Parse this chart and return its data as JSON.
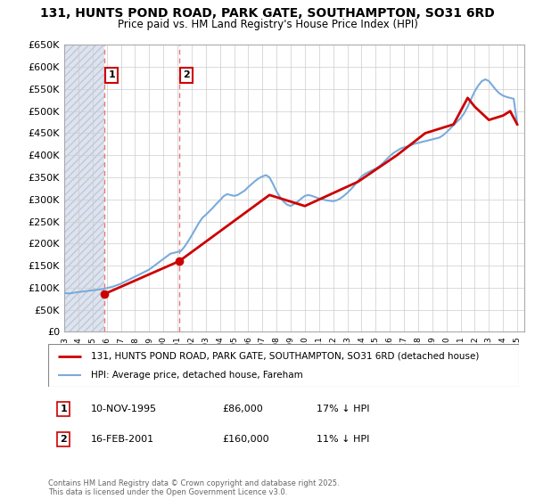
{
  "title": "131, HUNTS POND ROAD, PARK GATE, SOUTHAMPTON, SO31 6RD",
  "subtitle": "Price paid vs. HM Land Registry's House Price Index (HPI)",
  "ylim": [
    0,
    650000
  ],
  "yticks": [
    0,
    50000,
    100000,
    150000,
    200000,
    250000,
    300000,
    350000,
    400000,
    450000,
    500000,
    550000,
    600000,
    650000
  ],
  "ytick_labels": [
    "£0",
    "£50K",
    "£100K",
    "£150K",
    "£200K",
    "£250K",
    "£300K",
    "£350K",
    "£400K",
    "£450K",
    "£500K",
    "£550K",
    "£600K",
    "£650K"
  ],
  "sales": [
    {
      "date_num": 1995.86,
      "price": 86000,
      "label": "1",
      "date_str": "10-NOV-1995",
      "price_str": "£86,000",
      "pct": "17% ↓ HPI"
    },
    {
      "date_num": 2001.12,
      "price": 160000,
      "label": "2",
      "date_str": "16-FEB-2001",
      "price_str": "£160,000",
      "pct": "11% ↓ HPI"
    }
  ],
  "hpi_line_color": "#7aabdc",
  "price_line_color": "#cc0000",
  "sale_marker_color": "#cc0000",
  "vline_color": "#e87878",
  "legend_line1": "131, HUNTS POND ROAD, PARK GATE, SOUTHAMPTON, SO31 6RD (detached house)",
  "legend_line2": "HPI: Average price, detached house, Fareham",
  "footer": "Contains HM Land Registry data © Crown copyright and database right 2025.\nThis data is licensed under the Open Government Licence v3.0.",
  "xlim_left": 1993.0,
  "xlim_right": 2025.5,
  "hpi_data_x": [
    1993.0,
    1993.25,
    1993.5,
    1993.75,
    1994.0,
    1994.25,
    1994.5,
    1994.75,
    1995.0,
    1995.25,
    1995.5,
    1995.75,
    1996.0,
    1996.25,
    1996.5,
    1996.75,
    1997.0,
    1997.25,
    1997.5,
    1997.75,
    1998.0,
    1998.25,
    1998.5,
    1998.75,
    1999.0,
    1999.25,
    1999.5,
    1999.75,
    2000.0,
    2000.25,
    2000.5,
    2000.75,
    2001.0,
    2001.25,
    2001.5,
    2001.75,
    2002.0,
    2002.25,
    2002.5,
    2002.75,
    2003.0,
    2003.25,
    2003.5,
    2003.75,
    2004.0,
    2004.25,
    2004.5,
    2004.75,
    2005.0,
    2005.25,
    2005.5,
    2005.75,
    2006.0,
    2006.25,
    2006.5,
    2006.75,
    2007.0,
    2007.25,
    2007.5,
    2007.75,
    2008.0,
    2008.25,
    2008.5,
    2008.75,
    2009.0,
    2009.25,
    2009.5,
    2009.75,
    2010.0,
    2010.25,
    2010.5,
    2010.75,
    2011.0,
    2011.25,
    2011.5,
    2011.75,
    2012.0,
    2012.25,
    2012.5,
    2012.75,
    2013.0,
    2013.25,
    2013.5,
    2013.75,
    2014.0,
    2014.25,
    2014.5,
    2014.75,
    2015.0,
    2015.25,
    2015.5,
    2015.75,
    2016.0,
    2016.25,
    2016.5,
    2016.75,
    2017.0,
    2017.25,
    2017.5,
    2017.75,
    2018.0,
    2018.25,
    2018.5,
    2018.75,
    2019.0,
    2019.25,
    2019.5,
    2019.75,
    2020.0,
    2020.25,
    2020.5,
    2020.75,
    2021.0,
    2021.25,
    2021.5,
    2021.75,
    2022.0,
    2022.25,
    2022.5,
    2022.75,
    2023.0,
    2023.25,
    2023.5,
    2023.75,
    2024.0,
    2024.25,
    2024.5,
    2024.75,
    2025.0
  ],
  "hpi_data_y": [
    88000,
    87000,
    87500,
    89000,
    90000,
    91000,
    92000,
    93000,
    94000,
    95000,
    96000,
    97000,
    99000,
    101000,
    103000,
    106000,
    109000,
    113000,
    117000,
    121000,
    125000,
    129000,
    133000,
    137000,
    141000,
    147000,
    153000,
    159000,
    165000,
    171000,
    177000,
    179000,
    181000,
    183000,
    193000,
    205000,
    218000,
    232000,
    246000,
    258000,
    265000,
    273000,
    281000,
    290000,
    298000,
    307000,
    312000,
    310000,
    308000,
    310000,
    315000,
    320000,
    328000,
    335000,
    342000,
    348000,
    352000,
    355000,
    350000,
    335000,
    318000,
    305000,
    295000,
    288000,
    285000,
    290000,
    295000,
    302000,
    308000,
    310000,
    308000,
    305000,
    302000,
    300000,
    298000,
    297000,
    296000,
    298000,
    302000,
    308000,
    315000,
    323000,
    332000,
    342000,
    352000,
    358000,
    362000,
    366000,
    370000,
    375000,
    382000,
    390000,
    398000,
    405000,
    410000,
    415000,
    418000,
    420000,
    423000,
    426000,
    428000,
    430000,
    432000,
    434000,
    436000,
    438000,
    440000,
    445000,
    452000,
    460000,
    468000,
    476000,
    484000,
    495000,
    510000,
    528000,
    545000,
    558000,
    568000,
    572000,
    568000,
    558000,
    548000,
    540000,
    535000,
    532000,
    530000,
    528000,
    470000
  ],
  "price_data_x": [
    1995.86,
    2001.12,
    2007.5,
    2010.0,
    2013.75,
    2016.5,
    2018.5,
    2020.5,
    2021.5,
    2022.0,
    2023.0,
    2024.0,
    2024.5,
    2025.0
  ],
  "price_data_y": [
    86000,
    160000,
    310000,
    285000,
    340000,
    400000,
    450000,
    470000,
    530000,
    510000,
    480000,
    490000,
    500000,
    470000
  ],
  "bg_color": "#ffffff",
  "hatch_color": "#dde4ef",
  "grid_color": "#cccccc"
}
